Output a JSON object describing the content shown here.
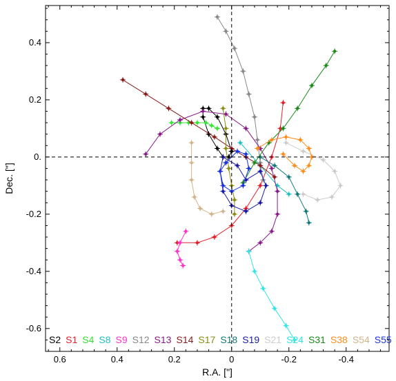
{
  "chart_data": {
    "type": "line",
    "xlabel": "R.A. [\"]",
    "ylabel": "Dec. [\"]",
    "xlim": [
      0.65,
      -0.55
    ],
    "ylim": [
      -0.68,
      0.53
    ],
    "x_ticks": [
      0.6,
      0.4,
      0.2,
      0.0,
      -0.2,
      -0.4
    ],
    "x_tick_labels": [
      "0.6",
      "0.4",
      "0.2",
      "0",
      "-0.2",
      "-0.4"
    ],
    "y_ticks": [
      0.4,
      0.2,
      0.0,
      -0.2,
      -0.4,
      -0.6
    ],
    "y_tick_labels": [
      "0.4",
      "0.2",
      "0.",
      "-0.2",
      "-0.4",
      "-0.6"
    ],
    "crosshair": {
      "x": 0,
      "y": 0,
      "style": "dashed"
    },
    "legend_placement": "bottom",
    "series": [
      {
        "name": "S2",
        "color": "#000000",
        "points": [
          [
            0.0,
            0.02
          ],
          [
            0.02,
            0.08
          ],
          [
            0.05,
            0.14
          ],
          [
            0.08,
            0.17
          ],
          [
            0.1,
            0.17
          ],
          [
            0.1,
            0.14
          ],
          [
            0.08,
            0.08
          ],
          [
            0.05,
            0.03
          ],
          [
            0.03,
            0.0
          ],
          [
            0.01,
            0.0
          ],
          [
            0.0,
            0.02
          ]
        ]
      },
      {
        "name": "S1",
        "color": "#e3202b",
        "points": [
          [
            -0.18,
            0.19
          ],
          [
            -0.17,
            0.1
          ],
          [
            -0.14,
            0.0
          ],
          [
            -0.1,
            -0.1
          ],
          [
            -0.05,
            -0.18
          ],
          [
            0.0,
            -0.24
          ],
          [
            0.06,
            -0.28
          ],
          [
            0.12,
            -0.3
          ],
          [
            0.19,
            -0.3
          ]
        ]
      },
      {
        "name": "S4",
        "color": "#33e633",
        "points": [
          [
            0.21,
            0.12
          ],
          [
            0.18,
            0.12
          ],
          [
            0.15,
            0.12
          ],
          [
            0.12,
            0.12
          ],
          [
            0.09,
            0.12
          ],
          [
            0.07,
            0.11
          ],
          [
            0.05,
            0.1
          ]
        ]
      },
      {
        "name": "S8",
        "color": "#1ebfbf",
        "points": [
          [
            -0.03,
            0.05
          ],
          [
            -0.1,
            -0.03
          ],
          [
            -0.16,
            -0.1
          ],
          [
            -0.2,
            -0.13
          ]
        ]
      },
      {
        "name": "S9",
        "color": "#ff33cc",
        "points": [
          [
            0.16,
            -0.26
          ],
          [
            0.18,
            -0.3
          ],
          [
            0.19,
            -0.33
          ],
          [
            0.18,
            -0.36
          ],
          [
            0.17,
            -0.38
          ]
        ]
      },
      {
        "name": "S12",
        "color": "#888888",
        "points": [
          [
            0.05,
            0.49
          ],
          [
            0.02,
            0.44
          ],
          [
            -0.01,
            0.38
          ],
          [
            -0.04,
            0.3
          ],
          [
            -0.06,
            0.22
          ],
          [
            -0.08,
            0.14
          ],
          [
            -0.09,
            0.06
          ],
          [
            -0.1,
            -0.02
          ],
          [
            -0.11,
            -0.08
          ]
        ]
      },
      {
        "name": "S13",
        "color": "#8a1a8a",
        "points": [
          [
            0.3,
            0.01
          ],
          [
            0.25,
            0.08
          ],
          [
            0.18,
            0.13
          ],
          [
            0.1,
            0.16
          ],
          [
            0.02,
            0.15
          ],
          [
            -0.05,
            0.1
          ],
          [
            -0.1,
            0.03
          ],
          [
            -0.14,
            -0.04
          ],
          [
            -0.16,
            -0.12
          ],
          [
            -0.16,
            -0.2
          ],
          [
            -0.14,
            -0.26
          ],
          [
            -0.1,
            -0.3
          ],
          [
            -0.06,
            -0.33
          ]
        ]
      },
      {
        "name": "S14",
        "color": "#8b1a1a",
        "points": [
          [
            0.38,
            0.27
          ],
          [
            0.3,
            0.22
          ],
          [
            0.22,
            0.17
          ],
          [
            0.14,
            0.12
          ],
          [
            0.06,
            0.07
          ],
          [
            0.0,
            0.03
          ],
          [
            -0.05,
            0.0
          ],
          [
            -0.1,
            -0.03
          ],
          [
            -0.15,
            -0.07
          ]
        ]
      },
      {
        "name": "S17",
        "color": "#8c8c14",
        "points": [
          [
            0.03,
            0.17
          ],
          [
            0.02,
            0.1
          ],
          [
            0.02,
            0.03
          ],
          [
            0.01,
            -0.04
          ],
          [
            0.0,
            -0.1
          ],
          [
            -0.01,
            -0.15
          ],
          [
            -0.01,
            -0.2
          ]
        ]
      },
      {
        "name": "S18",
        "color": "#127a7a",
        "points": [
          [
            -0.1,
            0.0
          ],
          [
            -0.15,
            -0.03
          ],
          [
            -0.2,
            -0.07
          ],
          [
            -0.23,
            -0.13
          ],
          [
            -0.26,
            -0.19
          ],
          [
            -0.27,
            -0.23
          ]
        ]
      },
      {
        "name": "S19",
        "color": "#1a1aa6",
        "points": [
          [
            -0.05,
            -0.08
          ],
          [
            -0.02,
            -0.03
          ],
          [
            0.03,
            0.0
          ],
          [
            0.04,
            -0.05
          ],
          [
            0.03,
            -0.12
          ],
          [
            0.0,
            -0.17
          ],
          [
            -0.05,
            -0.19
          ],
          [
            -0.1,
            -0.16
          ],
          [
            -0.12,
            -0.1
          ],
          [
            -0.1,
            -0.05
          ],
          [
            -0.05,
            -0.08
          ]
        ]
      },
      {
        "name": "S21",
        "color": "#cccccc",
        "points": [
          [
            -0.19,
            0.05
          ],
          [
            -0.25,
            0.02
          ],
          [
            -0.32,
            -0.01
          ],
          [
            -0.36,
            -0.05
          ],
          [
            -0.38,
            -0.1
          ],
          [
            -0.35,
            -0.14
          ],
          [
            -0.3,
            -0.15
          ],
          [
            -0.25,
            -0.13
          ]
        ]
      },
      {
        "name": "S24",
        "color": "#33e6e6",
        "points": [
          [
            -0.06,
            -0.33
          ],
          [
            -0.08,
            -0.4
          ],
          [
            -0.11,
            -0.46
          ],
          [
            -0.15,
            -0.53
          ],
          [
            -0.19,
            -0.59
          ],
          [
            -0.22,
            -0.64
          ]
        ]
      },
      {
        "name": "S31",
        "color": "#1a8a1a",
        "points": [
          [
            -0.04,
            -0.09
          ],
          [
            -0.08,
            -0.02
          ],
          [
            -0.13,
            0.05
          ],
          [
            -0.18,
            0.1
          ],
          [
            -0.23,
            0.17
          ],
          [
            -0.28,
            0.25
          ],
          [
            -0.33,
            0.32
          ],
          [
            -0.36,
            0.37
          ]
        ]
      },
      {
        "name": "S38",
        "color": "#ff8c1a",
        "points": [
          [
            -0.09,
            0.03
          ],
          [
            -0.14,
            0.06
          ],
          [
            -0.19,
            0.07
          ],
          [
            -0.24,
            0.06
          ],
          [
            -0.27,
            0.03
          ],
          [
            -0.28,
            0.0
          ],
          [
            -0.27,
            -0.03
          ],
          [
            -0.25,
            -0.05
          ],
          [
            -0.22,
            -0.03
          ],
          [
            -0.18,
            0.01
          ]
        ]
      },
      {
        "name": "S54",
        "color": "#d2b48c",
        "points": [
          [
            0.14,
            0.05
          ],
          [
            0.14,
            -0.02
          ],
          [
            0.14,
            -0.08
          ],
          [
            0.13,
            -0.14
          ],
          [
            0.11,
            -0.18
          ],
          [
            0.07,
            -0.2
          ],
          [
            0.03,
            -0.19
          ]
        ]
      },
      {
        "name": "S55",
        "color": "#1a33e6",
        "points": [
          [
            0.02,
            -0.02
          ],
          [
            -0.02,
            0.02
          ],
          [
            -0.05,
            0.01
          ],
          [
            -0.06,
            -0.04
          ],
          [
            -0.04,
            -0.1
          ],
          [
            0.0,
            -0.12
          ],
          [
            0.03,
            -0.1
          ],
          [
            0.04,
            -0.05
          ],
          [
            0.02,
            -0.02
          ]
        ]
      }
    ]
  }
}
